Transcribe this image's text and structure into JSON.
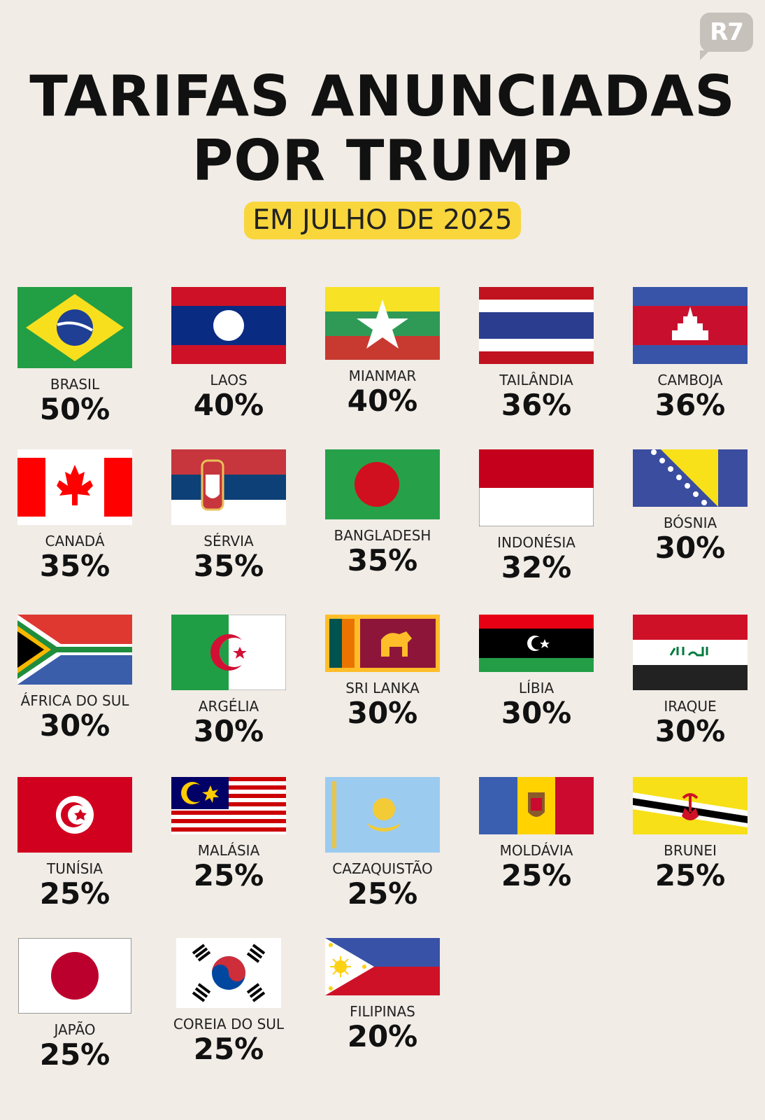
{
  "logo": "R7",
  "title": [
    "TARIFAS ANUNCIADAS",
    "POR TRUMP"
  ],
  "subtitle": "EM JULHO DE 2025",
  "countries": [
    {
      "name": "BRASIL",
      "tariff": "50%",
      "flag": "brazil-flag"
    },
    {
      "name": "LAOS",
      "tariff": "40%",
      "flag": "laos-flag"
    },
    {
      "name": "MIANMAR",
      "tariff": "40%",
      "flag": "myanmar-flag"
    },
    {
      "name": "TAILÂNDIA",
      "tariff": "36%",
      "flag": "thailand-flag"
    },
    {
      "name": "CAMBOJA",
      "tariff": "36%",
      "flag": "cambodia-flag"
    },
    {
      "name": "CANADÁ",
      "tariff": "35%",
      "flag": "canada-flag"
    },
    {
      "name": "SÉRVIA",
      "tariff": "35%",
      "flag": "serbia-flag"
    },
    {
      "name": "BANGLADESH",
      "tariff": "35%",
      "flag": "bangladesh-flag"
    },
    {
      "name": "INDONÉSIA",
      "tariff": "32%",
      "flag": "indonesia-flag"
    },
    {
      "name": "BÓSNIA",
      "tariff": "30%",
      "flag": "bosnia-flag"
    },
    {
      "name": "ÁFRICA DO SUL",
      "tariff": "30%",
      "flag": "south-africa-flag"
    },
    {
      "name": "ARGÉLIA",
      "tariff": "30%",
      "flag": "algeria-flag"
    },
    {
      "name": "SRI LANKA",
      "tariff": "30%",
      "flag": "sri-lanka-flag"
    },
    {
      "name": "LÍBIA",
      "tariff": "30%",
      "flag": "libya-flag"
    },
    {
      "name": "IRAQUE",
      "tariff": "30%",
      "flag": "iraq-flag"
    },
    {
      "name": "TUNÍSIA",
      "tariff": "25%",
      "flag": "tunisia-flag"
    },
    {
      "name": "MALÁSIA",
      "tariff": "25%",
      "flag": "malaysia-flag"
    },
    {
      "name": "CAZAQUISTÃO",
      "tariff": "25%",
      "flag": "kazakhstan-flag"
    },
    {
      "name": "MOLDÁVIA",
      "tariff": "25%",
      "flag": "moldova-flag"
    },
    {
      "name": "BRUNEI",
      "tariff": "25%",
      "flag": "brunei-flag"
    },
    {
      "name": "JAPÃO",
      "tariff": "25%",
      "flag": "japan-flag"
    },
    {
      "name": "COREIA DO SUL",
      "tariff": "25%",
      "flag": "south-korea-flag"
    },
    {
      "name": "FILIPINAS",
      "tariff": "20%",
      "flag": "philippines-flag"
    }
  ]
}
